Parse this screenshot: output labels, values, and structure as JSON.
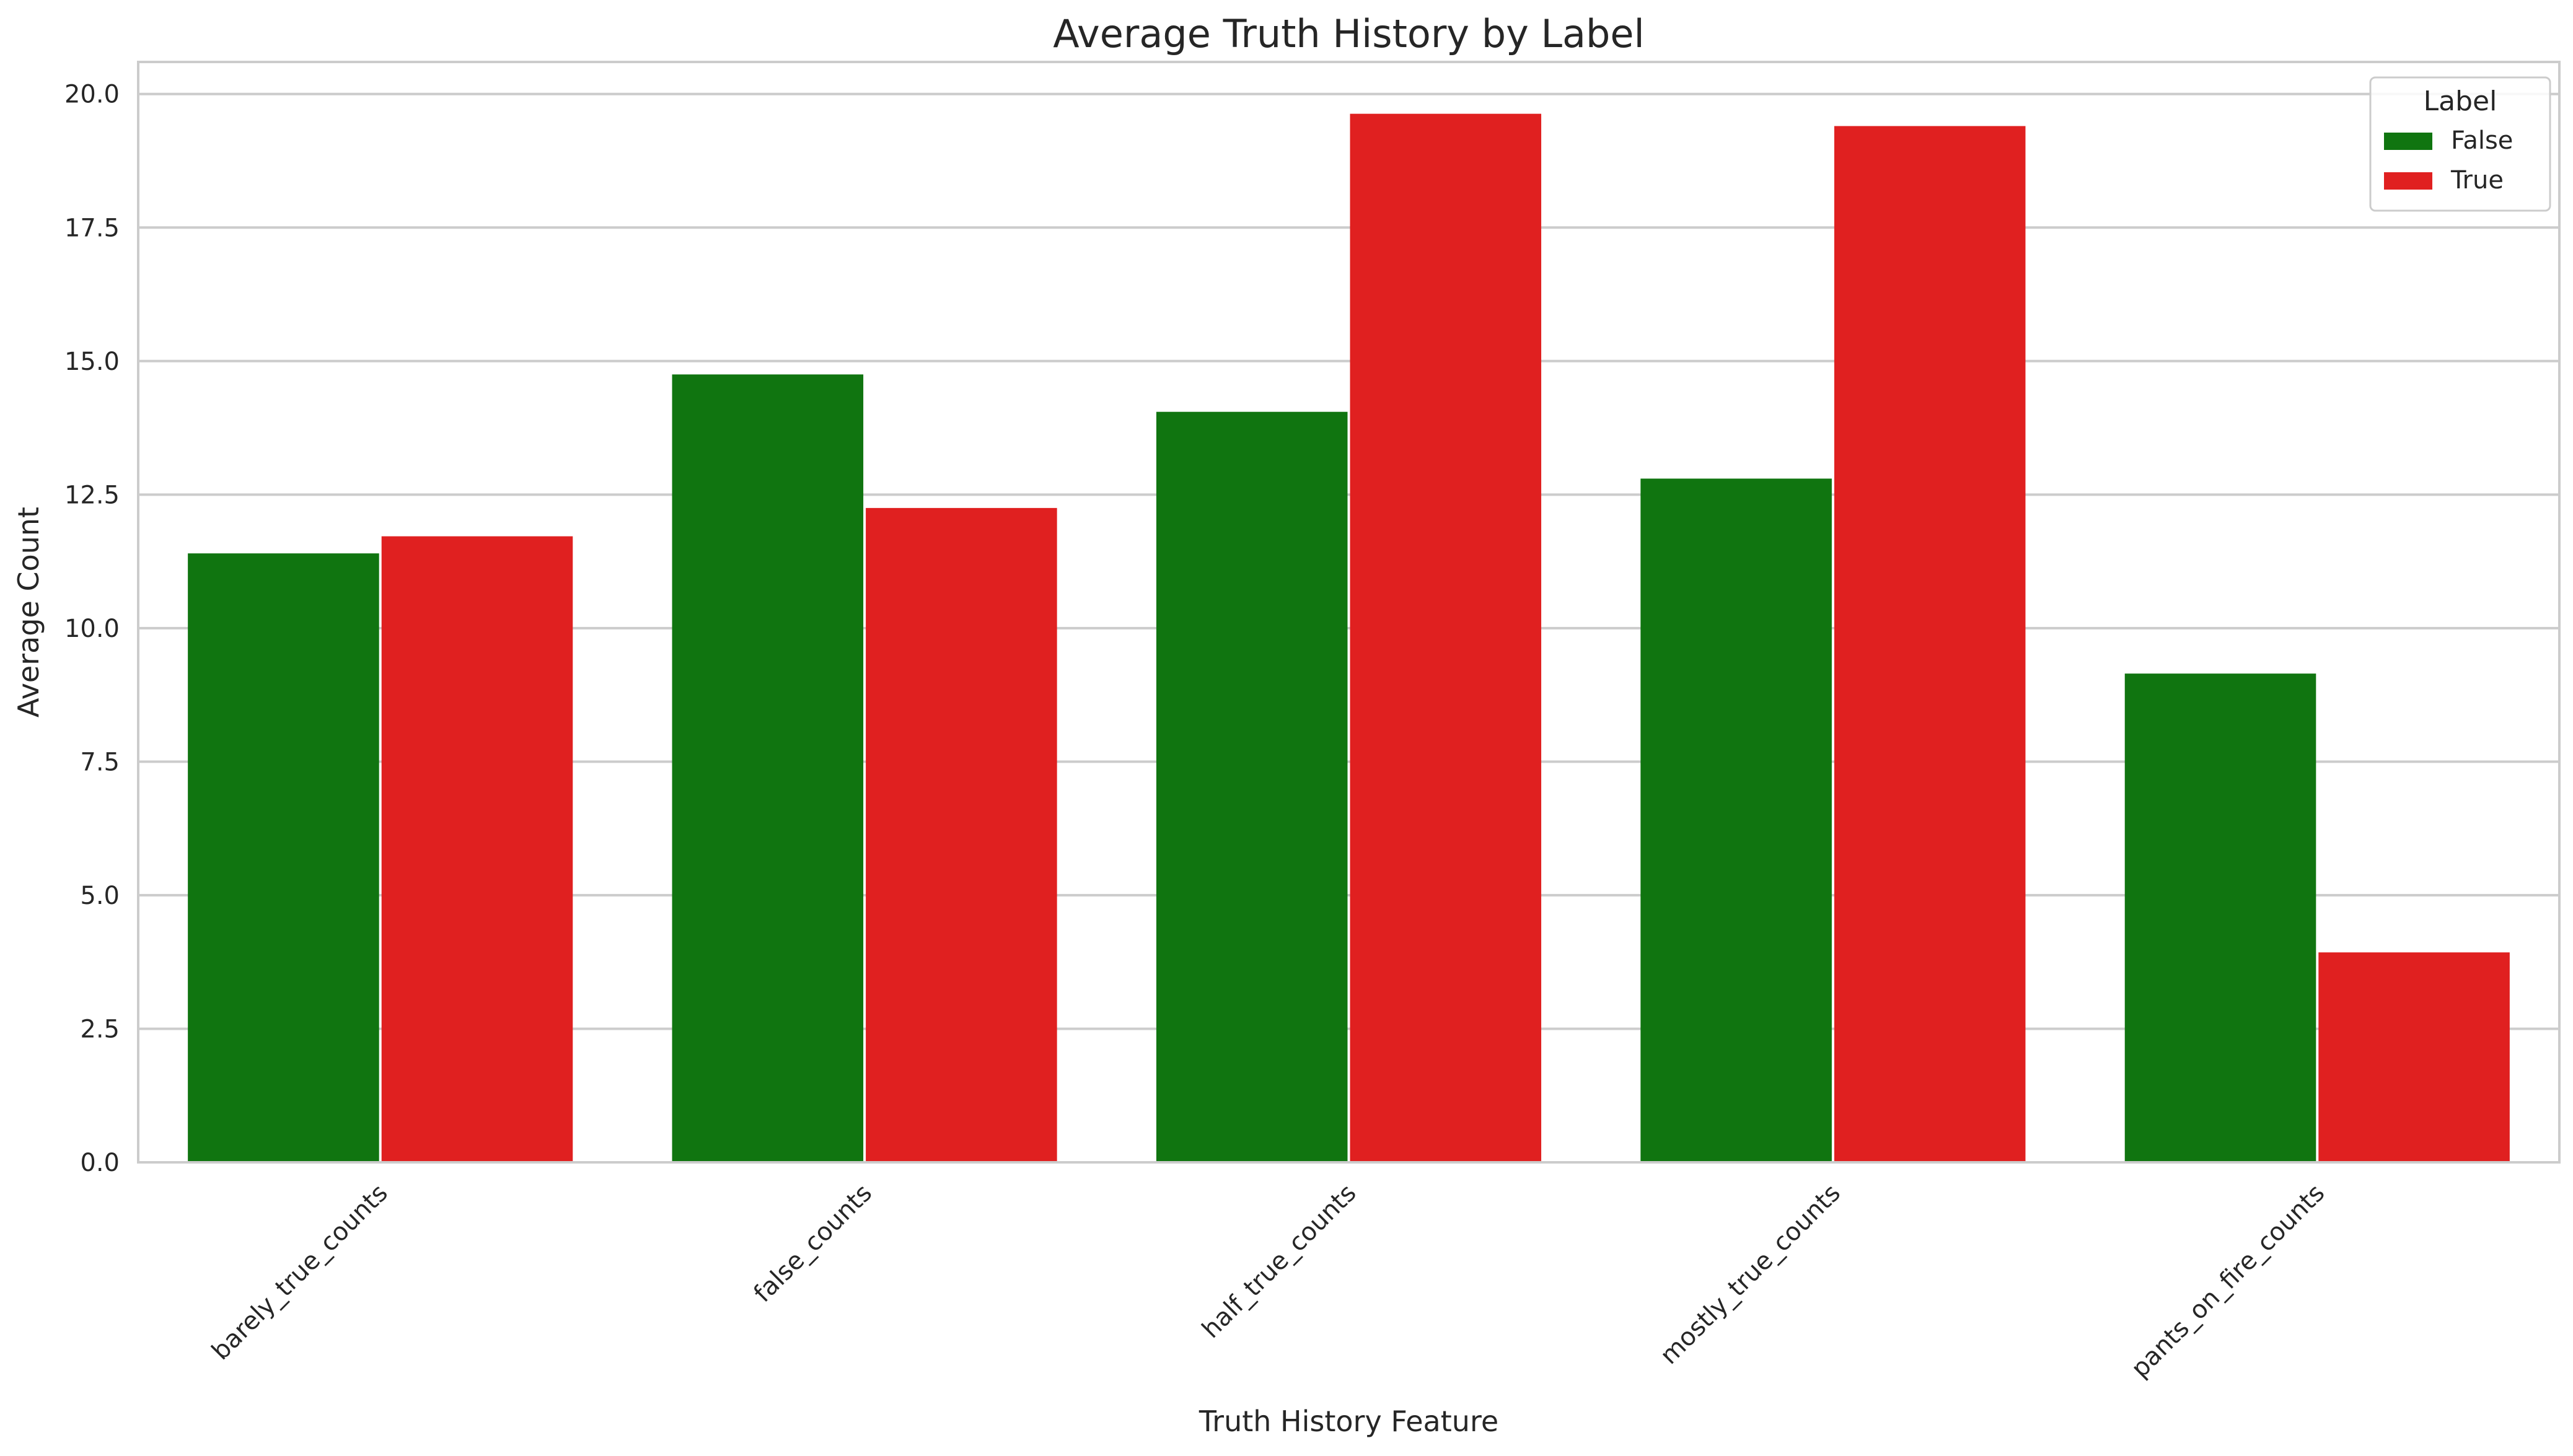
{
  "chart_data": {
    "type": "bar",
    "title": "Average Truth History by Label",
    "xlabel": "Truth History Feature",
    "ylabel": "Average Count",
    "categories": [
      "barely_true_counts",
      "false_counts",
      "half_true_counts",
      "mostly_true_counts",
      "pants_on_fire_counts"
    ],
    "series": [
      {
        "name": "False",
        "color": "#107510",
        "values": [
          11.4,
          14.75,
          14.05,
          12.8,
          9.15
        ]
      },
      {
        "name": "True",
        "color": "#e02020",
        "values": [
          11.72,
          12.25,
          19.63,
          19.4,
          3.93
        ]
      }
    ],
    "ylim": [
      0,
      20.6
    ],
    "yticks": [
      "0.0",
      "2.5",
      "5.0",
      "7.5",
      "10.0",
      "12.5",
      "15.0",
      "17.5",
      "20.0"
    ],
    "grid": "horizontal",
    "legend": {
      "title": "Label",
      "position": "top-right"
    }
  }
}
